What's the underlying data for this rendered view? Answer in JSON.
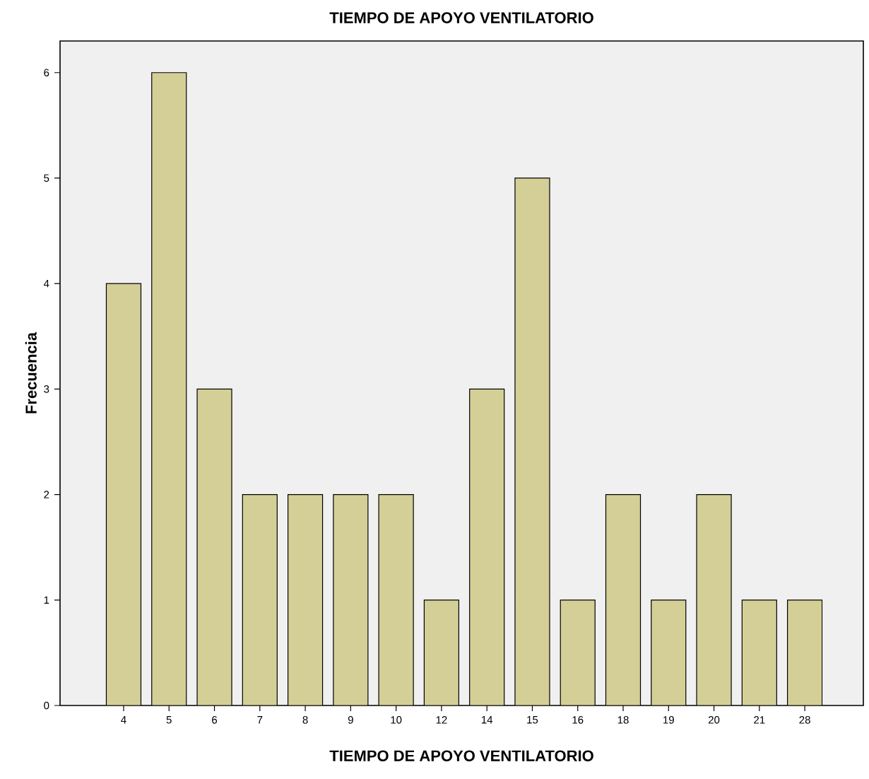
{
  "chart_data": {
    "type": "bar",
    "title": "TIEMPO DE APOYO VENTILATORIO",
    "xlabel": "TIEMPO DE APOYO VENTILATORIO",
    "ylabel": "Frecuencia",
    "categories": [
      "4",
      "5",
      "6",
      "7",
      "8",
      "9",
      "10",
      "12",
      "14",
      "15",
      "16",
      "18",
      "19",
      "20",
      "21",
      "28"
    ],
    "values": [
      4,
      6,
      3,
      2,
      2,
      2,
      2,
      1,
      3,
      5,
      1,
      2,
      1,
      2,
      1,
      1
    ],
    "color": "#d4cf96",
    "ylim": [
      0,
      6.3
    ],
    "yticks": [
      0,
      1,
      2,
      3,
      4,
      5,
      6
    ],
    "grid": false
  }
}
